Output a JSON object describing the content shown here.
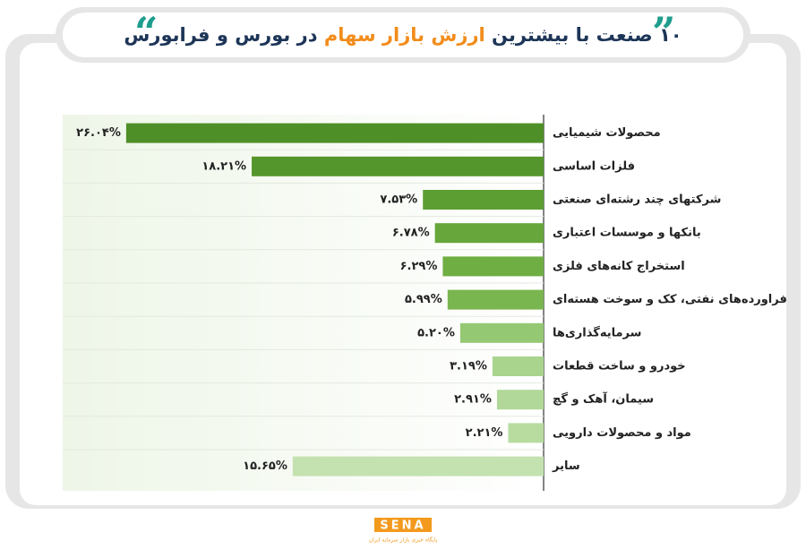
{
  "chart_data": {
    "type": "bar",
    "orientation": "horizontal",
    "title_parts": [
      "۱۰ صنعت با بیشترین",
      "ارزش بازار سهام",
      "در بورس و فرابورس"
    ],
    "categories": [
      "محصولات شیمیایی",
      "فلزات اساسی",
      "شرکتهای چند رشته‌ای صنعتی",
      "بانکها و موسسات اعتباری",
      "استخراج کانه‌های فلزی",
      "فراورده‌های نفتی، کک و سوخت هسته‌ای",
      "سرمایه‌گذاری‌ها",
      "خودرو و ساخت قطعات",
      "سیمان، آهک و گچ",
      "مواد و محصولات دارویی",
      "سایر"
    ],
    "values": [
      26.04,
      18.21,
      7.53,
      6.78,
      6.29,
      5.99,
      5.2,
      3.19,
      2.91,
      2.21,
      15.65
    ],
    "value_labels": [
      "۲۶.۰۴%",
      "۱۸.۲۱%",
      "۷.۵۳%",
      "۶.۷۸%",
      "۶.۲۹%",
      "۵.۹۹%",
      "۵.۲۰%",
      "۳.۱۹%",
      "۲.۹۱%",
      "۲.۲۱%",
      "۱۵.۶۵%"
    ],
    "colors": [
      "#4f8f27",
      "#55962c",
      "#5d9e33",
      "#66a63b",
      "#6fae43",
      "#7ab64f",
      "#95c873",
      "#a9d48e",
      "#b1d898",
      "#b8dca0",
      "#c4e2b0"
    ],
    "xlim": [
      0,
      30
    ],
    "logo": "SENA",
    "logo_tagline": "پایگاه خبری بازار سرمایه ایران"
  }
}
